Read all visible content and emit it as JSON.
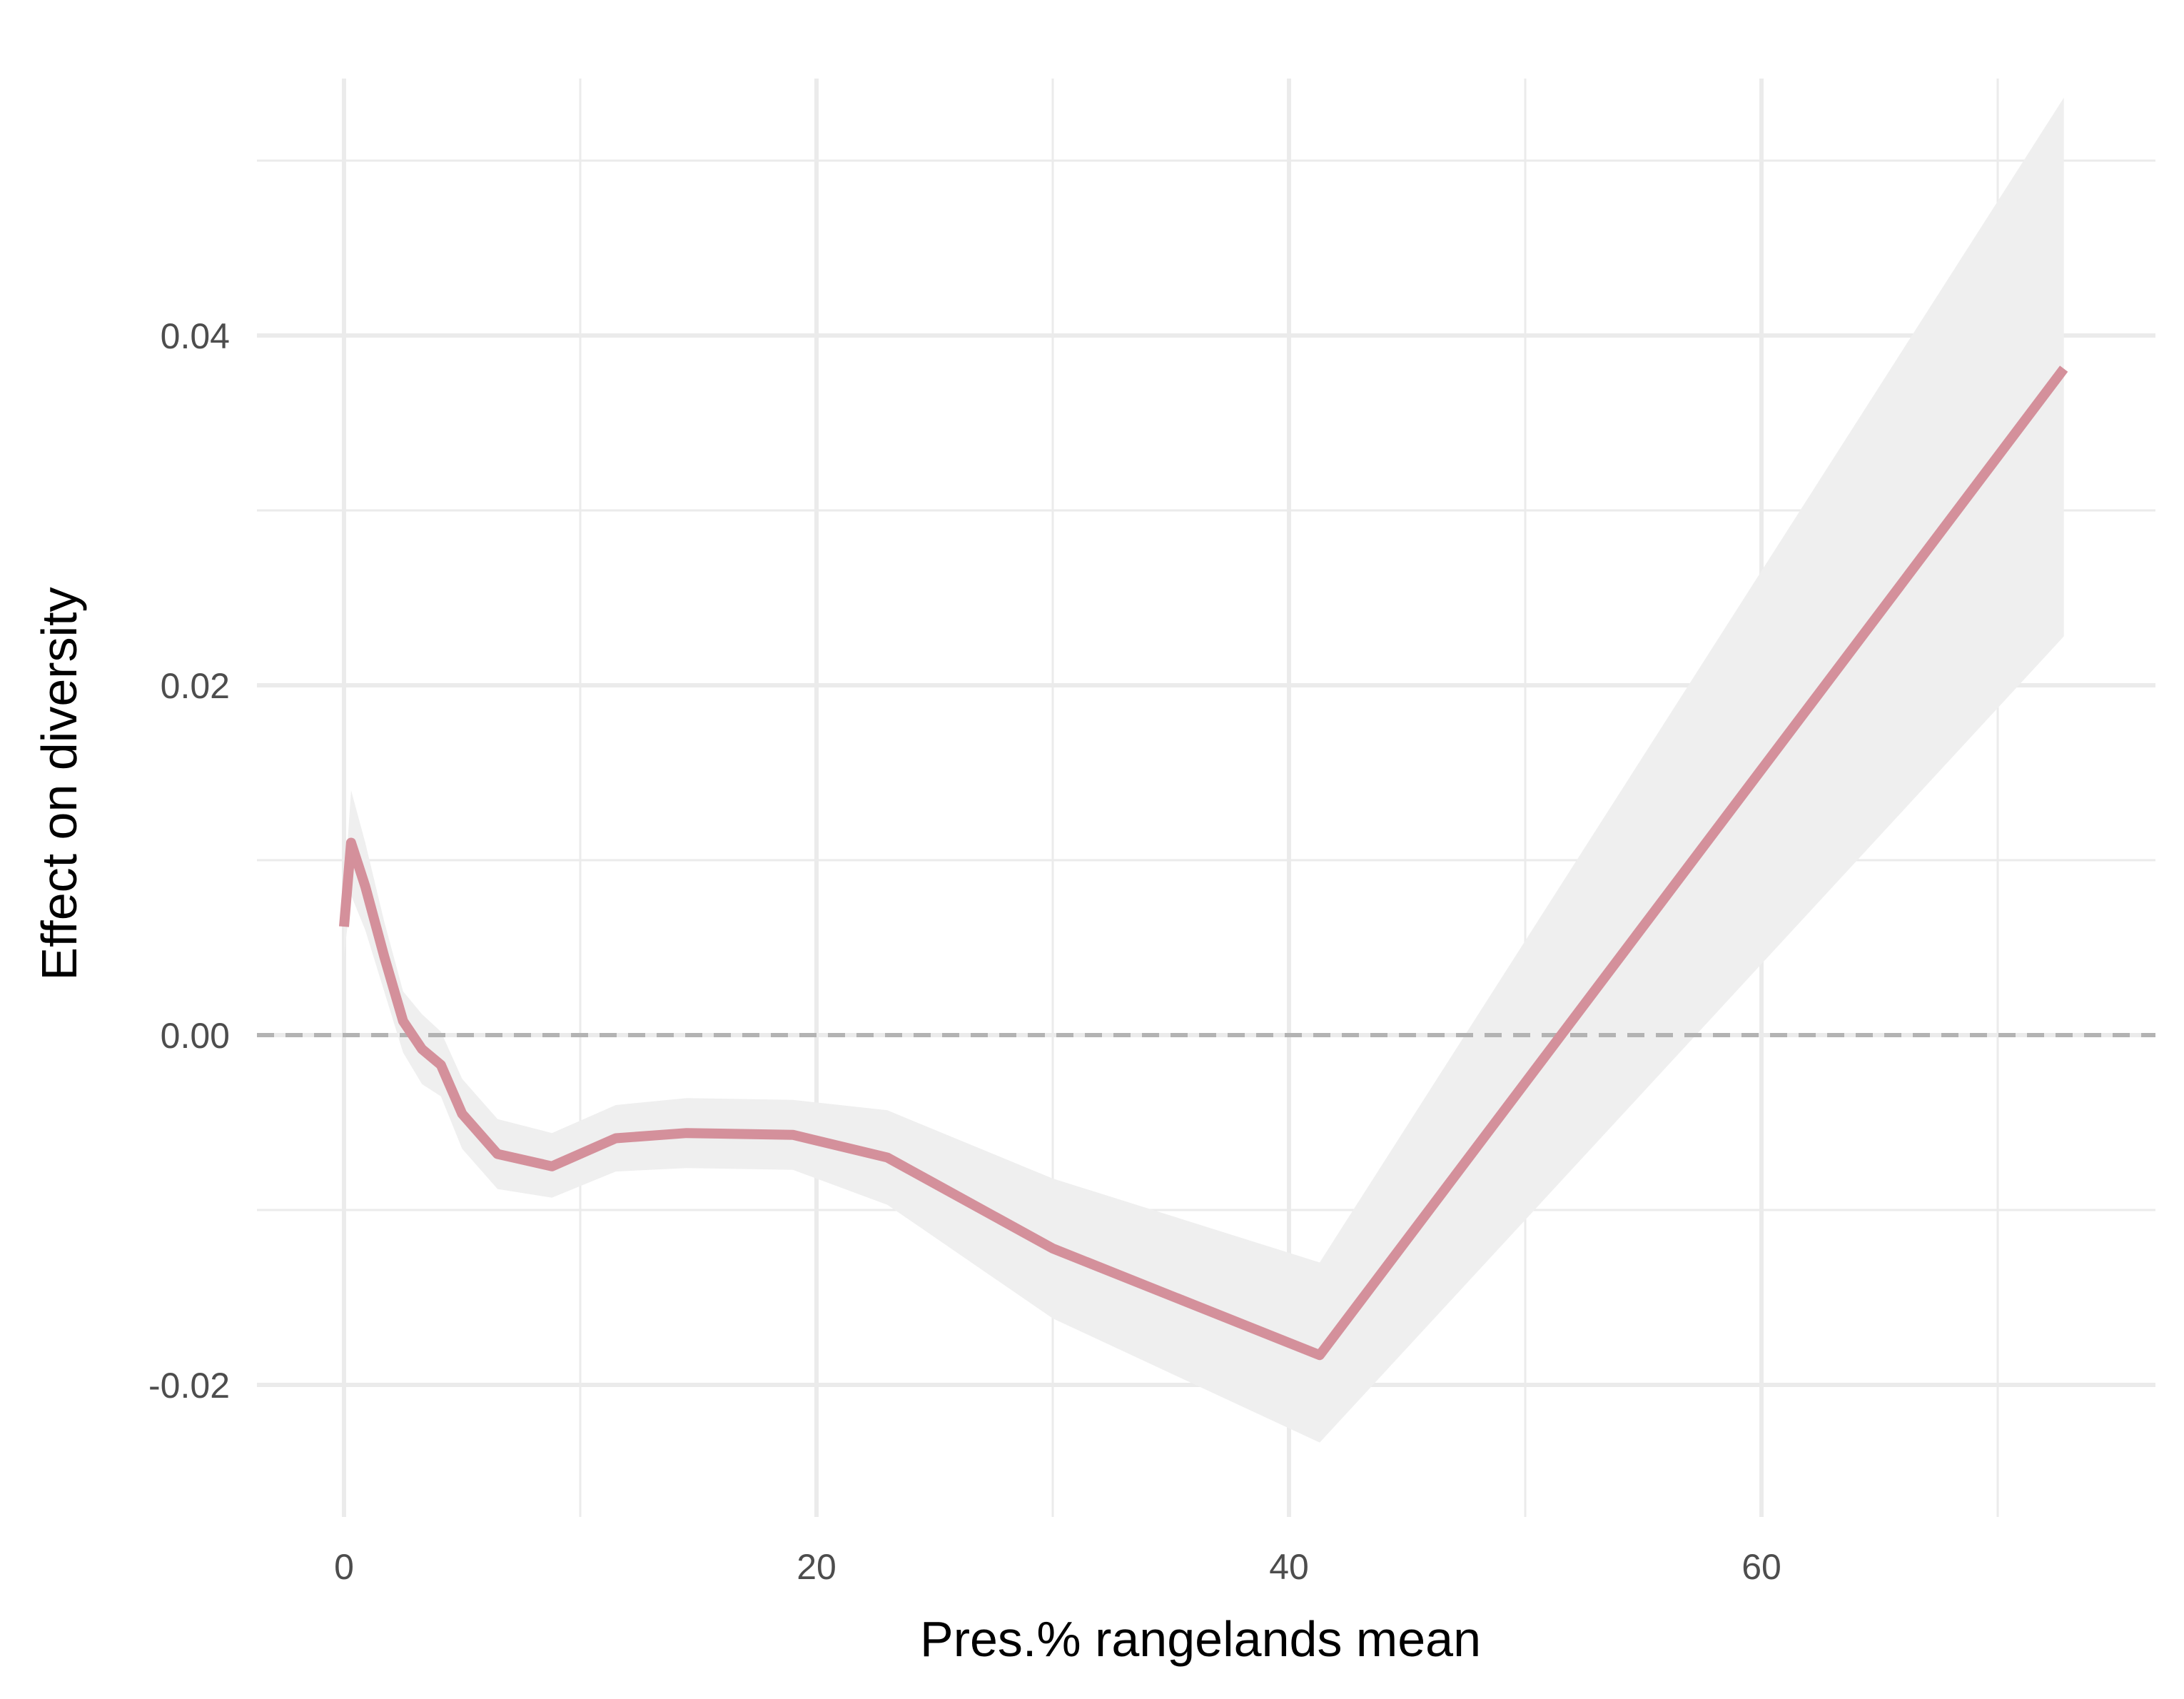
{
  "chart_data": {
    "type": "line",
    "title": "",
    "xlabel": "Pres.% rangelands mean",
    "ylabel": "Effect on diversity",
    "xlim": [
      -4,
      76
    ],
    "ylim": [
      -0.0265,
      0.0555
    ],
    "x_ticks": [
      0,
      20,
      40,
      60
    ],
    "x_tick_labels": [
      "0",
      "20",
      "40",
      "60"
    ],
    "y_ticks": [
      -0.02,
      0.0,
      0.02,
      0.04
    ],
    "y_tick_labels": [
      "-0.02",
      "0.00",
      "0.02",
      "0.04"
    ],
    "x_minor_ticks": [
      10,
      30,
      50,
      70
    ],
    "y_minor_ticks": [
      -0.01,
      0.01,
      0.03,
      0.05
    ],
    "grid": true,
    "legend": "none",
    "reference_line": {
      "y": 0.0,
      "style": "dashed",
      "color": "#b3b3b3"
    },
    "series": [
      {
        "x": [
          0.0,
          0.3,
          0.9,
          1.7,
          2.5,
          3.3,
          4.1,
          5.0,
          6.5,
          8.8,
          11.5,
          14.5,
          19.0,
          23.0,
          30.0,
          41.3,
          72.8
        ],
        "y": [
          0.0062,
          0.011,
          0.0085,
          0.0045,
          0.0008,
          -0.0008,
          -0.0017,
          -0.0045,
          -0.0068,
          -0.0075,
          -0.0059,
          -0.0056,
          -0.0057,
          -0.007,
          -0.0122,
          -0.0183,
          0.0381
        ],
        "lower": [
          0.0045,
          0.008,
          0.006,
          0.0025,
          -0.001,
          -0.0028,
          -0.0035,
          -0.0065,
          -0.0088,
          -0.0093,
          -0.0078,
          -0.0076,
          -0.0077,
          -0.0097,
          -0.0162,
          -0.0233,
          0.0228
        ],
        "upper": [
          0.008,
          0.014,
          0.011,
          0.0065,
          0.0025,
          0.0012,
          0.0002,
          -0.0025,
          -0.0048,
          -0.0056,
          -0.004,
          -0.0036,
          -0.0037,
          -0.0043,
          -0.0082,
          -0.013,
          0.0536
        ]
      }
    ],
    "colors": {
      "line": "#d4909b",
      "band": "#efefef",
      "grid": "#ebebeb"
    }
  }
}
